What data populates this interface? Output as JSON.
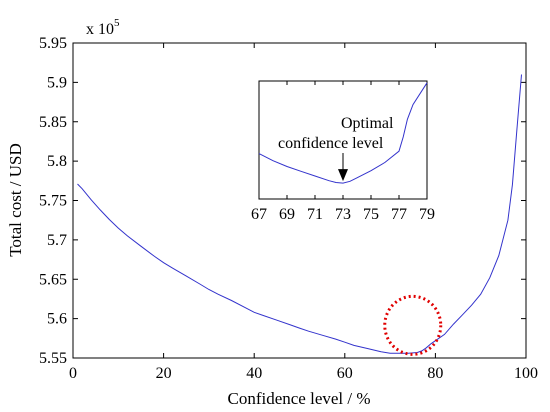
{
  "chart_data": [
    {
      "type": "line",
      "xlabel": "Confidence level / %",
      "ylabel": "Total cost / USD",
      "exponent_label": "x 10",
      "exponent_power": "5",
      "xlim": [
        0,
        100
      ],
      "ylim": [
        5.55,
        5.95
      ],
      "x_ticks": [
        0,
        20,
        40,
        60,
        80,
        100
      ],
      "y_ticks": [
        5.55,
        5.6,
        5.65,
        5.7,
        5.75,
        5.8,
        5.85,
        5.9,
        5.95
      ],
      "x_tick_labels": [
        "0",
        "20",
        "40",
        "60",
        "80",
        "100"
      ],
      "y_tick_labels": [
        "5.55",
        "5.6",
        "5.65",
        "5.7",
        "5.75",
        "5.8",
        "5.85",
        "5.9",
        "5.95"
      ],
      "line_color": "#3333cc",
      "highlight_circle": {
        "x": 75,
        "y": 5.561,
        "color": "#e00000",
        "style": "dotted"
      },
      "series": [
        {
          "x": [
            1,
            2,
            4,
            6,
            8,
            10,
            12,
            15,
            18,
            20,
            22,
            25,
            28,
            30,
            32,
            35,
            38,
            40,
            42,
            45,
            48,
            50,
            52,
            55,
            58,
            60,
            62,
            65,
            68,
            70,
            72,
            74,
            76,
            77,
            78,
            79,
            80,
            82,
            84,
            86,
            88,
            90,
            92,
            94,
            96,
            97,
            98,
            99
          ],
          "y": [
            5.771,
            5.765,
            5.751,
            5.738,
            5.726,
            5.715,
            5.705,
            5.692,
            5.679,
            5.671,
            5.664,
            5.654,
            5.644,
            5.637,
            5.631,
            5.623,
            5.614,
            5.608,
            5.604,
            5.598,
            5.592,
            5.588,
            5.584,
            5.579,
            5.574,
            5.57,
            5.566,
            5.562,
            5.558,
            5.556,
            5.556,
            5.556,
            5.557,
            5.559,
            5.563,
            5.568,
            5.572,
            5.58,
            5.593,
            5.605,
            5.617,
            5.631,
            5.652,
            5.68,
            5.725,
            5.77,
            5.84,
            5.91
          ]
        }
      ]
    },
    {
      "type": "line",
      "annotation": "Optimal confidence level",
      "annotation_line1": "Optimal",
      "annotation_line2": "confidence level",
      "xlim": [
        67,
        79
      ],
      "ylim": [
        5.555,
        5.575
      ],
      "x_ticks": [
        67,
        69,
        71,
        73,
        75,
        77,
        79
      ],
      "x_tick_labels": [
        "67",
        "69",
        "71",
        "73",
        "75",
        "77",
        "79"
      ],
      "arrow_at": {
        "x": 73,
        "y": 5.5577
      },
      "line_color": "#3333cc",
      "series": [
        {
          "x": [
            67,
            68,
            69,
            70,
            71,
            72,
            72.5,
            73,
            73.5,
            74,
            75,
            76,
            77,
            77.3,
            77.6,
            78,
            79
          ],
          "y": [
            5.5627,
            5.5615,
            5.5605,
            5.5597,
            5.5589,
            5.5581,
            5.5578,
            5.5577,
            5.558,
            5.5586,
            5.5598,
            5.5612,
            5.5631,
            5.5655,
            5.5685,
            5.571,
            5.5747
          ]
        }
      ]
    }
  ]
}
